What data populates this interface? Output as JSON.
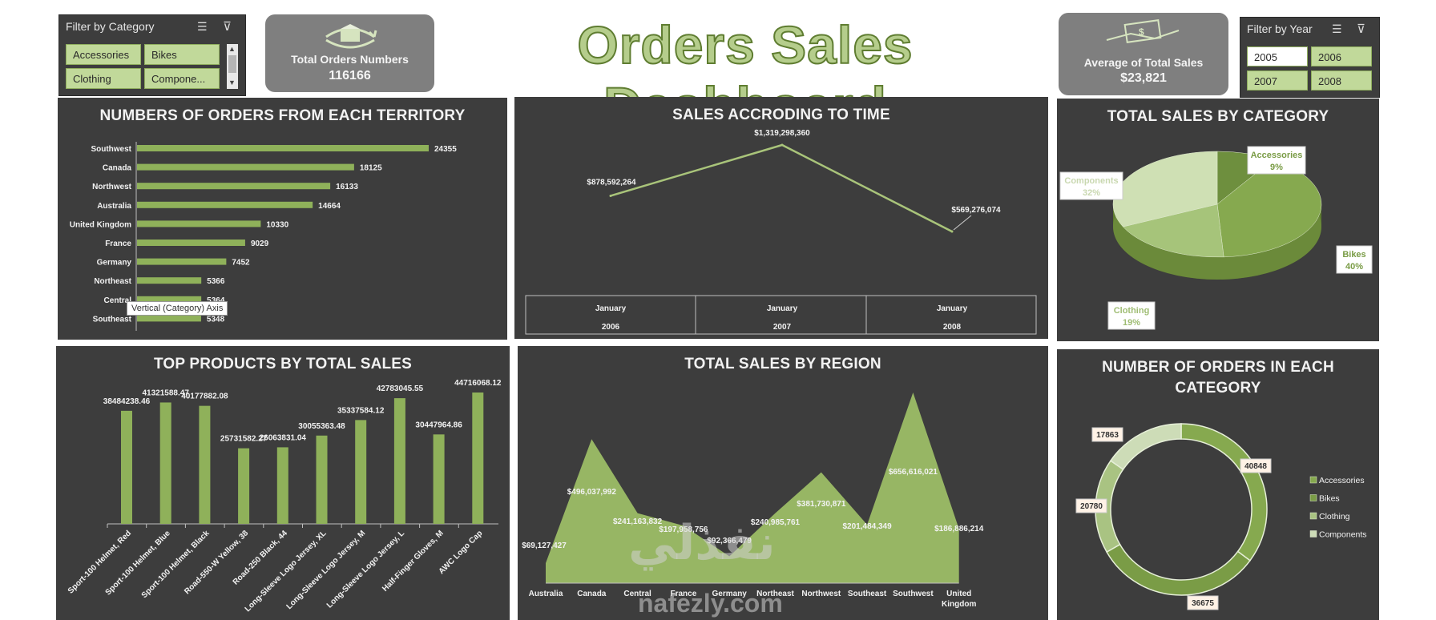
{
  "dashboard_title": "Orders Sales Dashboard",
  "category_slicer": {
    "title": "Filter by Category",
    "items": [
      "Accessories",
      "Bikes",
      "Clothing",
      "Compone..."
    ]
  },
  "year_slicer": {
    "title": "Filter by Year",
    "items": [
      "2005",
      "2006",
      "2007",
      "2008"
    ],
    "selected": "2005"
  },
  "kpi_orders": {
    "label": "Total Orders Numbers",
    "value": "116166"
  },
  "kpi_avg": {
    "label": "Average of Total Sales",
    "value": "$23,821"
  },
  "tooltip": "Vertical (Category) Axis",
  "watermark": {
    "arabic": "نفذلي",
    "latin": "nafezly.com"
  },
  "colors": {
    "accent": "#8fb15a",
    "panel": "#3d3d3d",
    "text": "#f2f2f2"
  },
  "chart_data": [
    {
      "type": "bar",
      "orientation": "horizontal",
      "title": "NUMBERS OF ORDERS FROM EACH TERRITORY",
      "categories": [
        "Southwest",
        "Canada",
        "Northwest",
        "Australia",
        "United Kingdom",
        "France",
        "Germany",
        "Northeast",
        "Central",
        "Southeast"
      ],
      "values": [
        24355,
        18125,
        16133,
        14664,
        10330,
        9029,
        7452,
        5366,
        5364,
        5348
      ],
      "data_labels": [
        "24355",
        "18125",
        "16133",
        "14664",
        "10330",
        "9029",
        "7452",
        "5366",
        "5364",
        "5348"
      ]
    },
    {
      "type": "line",
      "title": "SALES ACCRODING TO TIME",
      "x_top": [
        "January",
        "January",
        "January"
      ],
      "x_bottom": [
        "2006",
        "2007",
        "2008"
      ],
      "values": [
        878592264,
        1319298360,
        569276074
      ],
      "data_labels": [
        "$878,592,264",
        "$1,319,298,360",
        "$569,276,074"
      ]
    },
    {
      "type": "pie",
      "title": "TOTAL SALES BY CATEGORY",
      "slices": [
        {
          "name": "Accessories",
          "pct": "9%",
          "value": 9,
          "color": "#6e8f3e"
        },
        {
          "name": "Bikes",
          "pct": "40%",
          "value": 40,
          "color": "#86a94f"
        },
        {
          "name": "Clothing",
          "pct": "19%",
          "value": 19,
          "color": "#a6c47a"
        },
        {
          "name": "Components",
          "pct": "32%",
          "value": 32,
          "color": "#cfe0b4"
        }
      ]
    },
    {
      "type": "bar",
      "title": "TOP PRODUCTS BY TOTAL SALES",
      "categories": [
        "Sport-100 Helmet, Red",
        "Sport-100 Helmet, Blue",
        "Sport-100 Helmet, Black",
        "Road-550-W Yellow, 38",
        "Road-250 Black, 44",
        "Long-Sleeve Logo Jersey, XL",
        "Long-Sleeve Logo Jersey, M",
        "Long-Sleeve Logo Jersey, L",
        "Half-Finger Gloves, M",
        "AWC Logo Cap"
      ],
      "values": [
        38484238.46,
        41321588.47,
        40177882.08,
        25731582.27,
        26063831.04,
        30055363.48,
        35337584.12,
        42783045.55,
        30447964.86,
        44716068.12
      ],
      "data_labels": [
        "38484238.46",
        "41321588.47",
        "40177882.08",
        "25731582.27",
        "26063831.04",
        "30055363.48",
        "35337584.12",
        "42783045.55",
        "30447964.86",
        "44716068.12"
      ]
    },
    {
      "type": "area",
      "title": "TOTAL SALES BY REGION",
      "categories": [
        "Australia",
        "Canada",
        "Central",
        "France",
        "Germany",
        "Northeast",
        "Northwest",
        "Southeast",
        "Southwest",
        "United Kingdom"
      ],
      "values": [
        69127427,
        496037992,
        241163832,
        197958756,
        92366479,
        240985761,
        381730871,
        201484349,
        656616021,
        186886214
      ],
      "data_labels": [
        "$69,127,427",
        "$496,037,992",
        "$241,163,832",
        "$197,958,756",
        "$92,366,479",
        "$240,985,761",
        "$381,730,871",
        "$201,484,349",
        "$656,616,021",
        "$186,886,214"
      ]
    },
    {
      "type": "pie",
      "variant": "doughnut",
      "title": "NUMBER OF ORDERS IN EACH CATEGORY",
      "slices": [
        {
          "name": "Accessories",
          "value": 40848,
          "label": "40848",
          "color": "#86a94f"
        },
        {
          "name": "Bikes",
          "value": 36675,
          "label": "36675",
          "color": "#7a9c46"
        },
        {
          "name": "Clothing",
          "value": 20780,
          "label": "20780",
          "color": "#a9c382"
        },
        {
          "name": "Components",
          "value": 17863,
          "label": "17863",
          "color": "#cddcb7"
        }
      ],
      "legend": [
        "Accessories",
        "Bikes",
        "Clothing",
        "Components"
      ]
    }
  ]
}
